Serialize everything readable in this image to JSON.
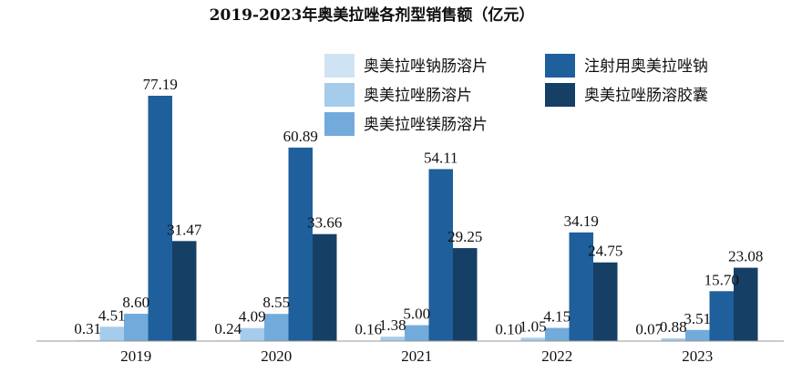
{
  "chart_data": {
    "type": "bar",
    "title": "2019-2023年奥美拉唑各剂型销售额（亿元）",
    "xlabel": "",
    "ylabel": "",
    "categories": [
      "2019",
      "2020",
      "2021",
      "2022",
      "2023"
    ],
    "ylim": [
      0,
      80
    ],
    "grid": false,
    "legend_position": "top-right",
    "series": [
      {
        "name": "奥美拉唑钠肠溶片",
        "color": "#cfe3f4",
        "values": [
          0.31,
          0.24,
          0.16,
          0.1,
          0.07
        ]
      },
      {
        "name": "奥美拉唑肠溶片",
        "color": "#a6ccec",
        "values": [
          4.51,
          4.09,
          1.38,
          1.05,
          0.88
        ]
      },
      {
        "name": "奥美拉唑镁肠溶片",
        "color": "#72abdb",
        "values": [
          8.6,
          8.55,
          5.0,
          4.15,
          3.51
        ]
      },
      {
        "name": "注射用奥美拉唑钠",
        "color": "#1f5f9b",
        "values": [
          77.19,
          60.89,
          54.11,
          34.19,
          15.7
        ]
      },
      {
        "name": "奥美拉唑肠溶胶囊",
        "color": "#163f66",
        "values": [
          31.47,
          33.66,
          29.25,
          24.75,
          23.08
        ]
      }
    ],
    "value_labels": [
      [
        "0.31",
        "4.51",
        "8.60",
        "77.19",
        "31.47"
      ],
      [
        "0.24",
        "4.09",
        "8.55",
        "60.89",
        "33.66"
      ],
      [
        "0.16",
        "1.38",
        "5.00",
        "54.11",
        "29.25"
      ],
      [
        "0.10",
        "1.05",
        "4.15",
        "34.19",
        "24.75"
      ],
      [
        "0.07",
        "0.88",
        "3.51",
        "15.70",
        "23.08"
      ]
    ]
  }
}
